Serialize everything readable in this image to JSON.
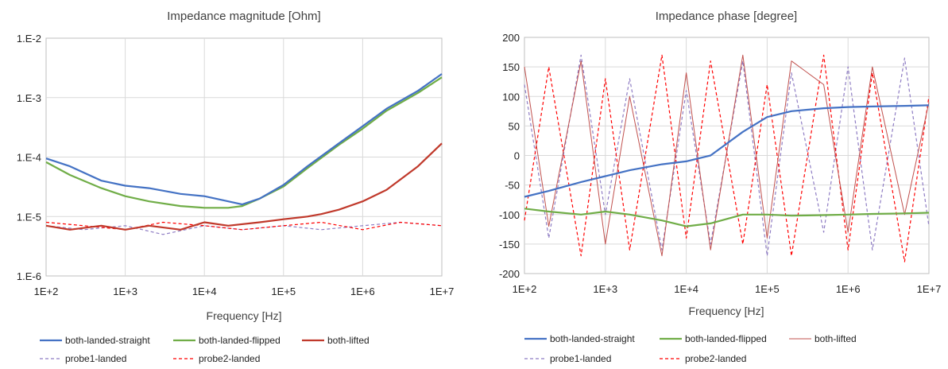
{
  "chart_data": [
    {
      "type": "line",
      "title": "Impedance magnitude [Ohm]",
      "xlabel": "Frequency [Hz]",
      "ylabel": "",
      "x_scale": "log",
      "y_scale": "log",
      "xlim": [
        100,
        10000000
      ],
      "ylim": [
        1e-06,
        0.01
      ],
      "x_ticks": [
        "1E+2",
        "1E+3",
        "1E+4",
        "1E+5",
        "1E+6",
        "1E+7"
      ],
      "y_ticks": [
        "1.E-6",
        "1.E-5",
        "1.E-4",
        "1.E-3",
        "1.E-2"
      ],
      "grid": true,
      "legend_position": "bottom",
      "series": [
        {
          "name": "both-landed-straight",
          "color": "#4472C4",
          "style": "solid",
          "x": [
            100,
            200,
            500,
            1000,
            2000,
            5000,
            10000,
            20000,
            30000,
            50000,
            100000,
            200000,
            500000,
            1000000,
            2000000,
            5000000,
            10000000
          ],
          "y": [
            9.5e-05,
            7e-05,
            4e-05,
            3.3e-05,
            3e-05,
            2.4e-05,
            2.2e-05,
            1.8e-05,
            1.6e-05,
            2e-05,
            3.4e-05,
            7e-05,
            0.00017,
            0.00033,
            0.00065,
            0.0013,
            0.0025
          ]
        },
        {
          "name": "both-landed-flipped",
          "color": "#70AD47",
          "style": "solid",
          "x": [
            100,
            200,
            500,
            1000,
            2000,
            5000,
            10000,
            20000,
            30000,
            50000,
            100000,
            200000,
            500000,
            1000000,
            2000000,
            5000000,
            10000000
          ],
          "y": [
            8.2e-05,
            5e-05,
            3e-05,
            2.2e-05,
            1.8e-05,
            1.5e-05,
            1.4e-05,
            1.4e-05,
            1.5e-05,
            2e-05,
            3.2e-05,
            6.5e-05,
            0.00016,
            0.0003,
            0.0006,
            0.0012,
            0.0022
          ]
        },
        {
          "name": "both-lifted",
          "color": "#C0392B",
          "style": "solid",
          "x": [
            100,
            200,
            500,
            1000,
            2000,
            5000,
            10000,
            20000,
            50000,
            100000,
            200000,
            300000,
            500000,
            1000000,
            2000000,
            5000000,
            10000000
          ],
          "y": [
            7e-06,
            6e-06,
            7e-06,
            6e-06,
            7e-06,
            6e-06,
            8e-06,
            7e-06,
            8e-06,
            9e-06,
            1e-05,
            1.1e-05,
            1.3e-05,
            1.8e-05,
            2.8e-05,
            7e-05,
            0.00017
          ]
        },
        {
          "name": "probe1-landed",
          "color": "#8E7CC3",
          "style": "dashed",
          "x": [
            100,
            300,
            1000,
            3000,
            10000,
            30000,
            100000,
            300000,
            1000000,
            3000000,
            10000000
          ],
          "y": [
            7e-06,
            6e-06,
            7e-06,
            5e-06,
            7e-06,
            6e-06,
            7e-06,
            6e-06,
            7e-06,
            8e-06,
            7e-06
          ]
        },
        {
          "name": "probe2-landed",
          "color": "#FF0000",
          "style": "dashed",
          "x": [
            100,
            300,
            1000,
            3000,
            10000,
            30000,
            100000,
            300000,
            1000000,
            3000000,
            10000000
          ],
          "y": [
            8e-06,
            7e-06,
            6e-06,
            8e-06,
            7e-06,
            6e-06,
            7e-06,
            8e-06,
            6e-06,
            8e-06,
            7e-06
          ]
        }
      ]
    },
    {
      "type": "line",
      "title": "Impedance phase [degree]",
      "xlabel": "Frequency [Hz]",
      "ylabel": "",
      "x_scale": "log",
      "y_scale": "linear",
      "xlim": [
        100,
        10000000
      ],
      "ylim": [
        -200,
        200
      ],
      "x_ticks": [
        "1E+2",
        "1E+3",
        "1E+4",
        "1E+5",
        "1E+6",
        "1E+7"
      ],
      "y_ticks": [
        "-200",
        "-150",
        "-100",
        "-50",
        "0",
        "50",
        "100",
        "150",
        "200"
      ],
      "grid": true,
      "legend_position": "bottom",
      "series": [
        {
          "name": "both-landed-straight",
          "color": "#4472C4",
          "style": "solid",
          "x": [
            100,
            200,
            500,
            1000,
            2000,
            5000,
            10000,
            20000,
            50000,
            100000,
            200000,
            500000,
            1000000,
            2000000,
            5000000,
            10000000
          ],
          "y": [
            -70,
            -60,
            -45,
            -35,
            -25,
            -15,
            -10,
            0,
            40,
            65,
            75,
            80,
            82,
            83,
            84,
            85
          ]
        },
        {
          "name": "both-landed-flipped",
          "color": "#70AD47",
          "style": "solid",
          "x": [
            100,
            200,
            500,
            1000,
            2000,
            5000,
            10000,
            20000,
            50000,
            100000,
            200000,
            500000,
            1000000,
            2000000,
            5000000,
            10000000
          ],
          "y": [
            -90,
            -95,
            -100,
            -95,
            -100,
            -110,
            -120,
            -115,
            -100,
            -100,
            -102,
            -101,
            -100,
            -99,
            -98,
            -97
          ]
        },
        {
          "name": "both-lifted",
          "color": "#C0504D",
          "style": "solid",
          "x": [
            100,
            200,
            500,
            1000,
            2000,
            5000,
            10000,
            20000,
            50000,
            100000,
            200000,
            500000,
            1000000,
            2000000,
            5000000,
            10000000
          ],
          "y": [
            150,
            -120,
            160,
            -150,
            100,
            -170,
            140,
            -160,
            170,
            -140,
            160,
            120,
            -130,
            150,
            -100,
            90
          ]
        },
        {
          "name": "probe1-landed",
          "color": "#8E7CC3",
          "style": "dashed",
          "x": [
            100,
            200,
            500,
            1000,
            2000,
            5000,
            10000,
            20000,
            50000,
            100000,
            200000,
            500000,
            1000000,
            2000000,
            5000000,
            10000000
          ],
          "y": [
            120,
            -140,
            170,
            -100,
            130,
            -160,
            110,
            -150,
            160,
            -170,
            140,
            -130,
            150,
            -160,
            165,
            -120
          ]
        },
        {
          "name": "probe2-landed",
          "color": "#FF0000",
          "style": "dashed",
          "x": [
            100,
            200,
            500,
            1000,
            2000,
            5000,
            10000,
            20000,
            50000,
            100000,
            200000,
            500000,
            1000000,
            2000000,
            5000000,
            10000000
          ],
          "y": [
            -110,
            150,
            -170,
            130,
            -160,
            170,
            -140,
            160,
            -150,
            120,
            -170,
            170,
            -160,
            140,
            -180,
            100
          ]
        }
      ]
    }
  ]
}
